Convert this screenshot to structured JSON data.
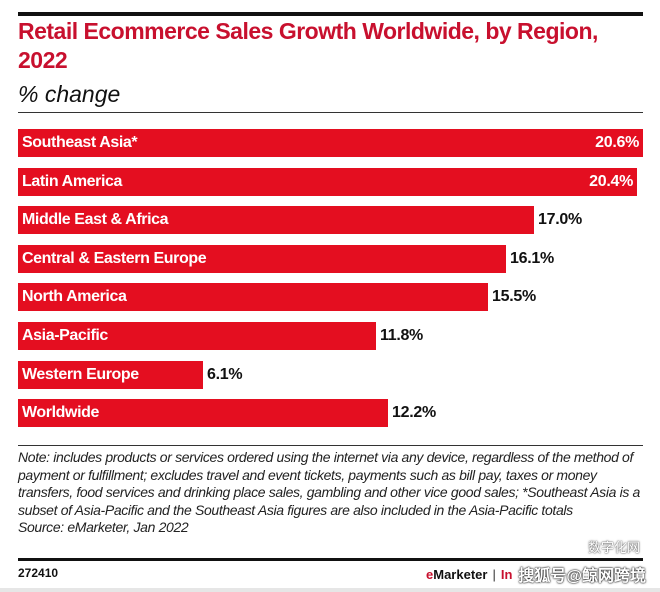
{
  "chart_data": {
    "type": "bar",
    "orientation": "horizontal",
    "title": "Retail Ecommerce Sales Growth Worldwide, by Region, 2022",
    "subtitle": "% change",
    "xlabel": "",
    "ylabel": "",
    "xlim": [
      0,
      20.6
    ],
    "grid": false,
    "categories": [
      "Southeast Asia*",
      "Latin America",
      "Middle East & Africa",
      "Central & Eastern Europe",
      "North America",
      "Asia-Pacific",
      "Western Europe",
      "Worldwide"
    ],
    "values": [
      20.6,
      20.4,
      17.0,
      16.1,
      15.5,
      11.8,
      6.1,
      12.2
    ],
    "value_labels": [
      "20.6%",
      "20.4%",
      "17.0%",
      "16.1%",
      "15.5%",
      "11.8%",
      "6.1%",
      "12.2%"
    ],
    "bar_color": "#e40e20"
  },
  "header": {
    "title": "Retail Ecommerce Sales Growth Worldwide, by Region, 2022",
    "subtitle": "% change"
  },
  "footer": {
    "note": "Note: includes products or services ordered using the internet via any device, regardless of the method of payment or fulfillment; excludes travel and event tickets, payments such as bill pay, taxes or money transfers, food services and drinking place sales, gambling and other vice good sales; *Southeast Asia is a subset of Asia-Pacific and the Southeast Asia figures are also included in the Asia-Pacific totals",
    "source": "Source: eMarketer, Jan 2022",
    "chart_id": "272410",
    "brand_e": "e",
    "brand_rest": "Marketer",
    "brand_sep": "|",
    "brand_insider": "In",
    "watermark": "搜狐号@鲸网跨境",
    "watermark_top": "数字化网"
  },
  "colors": {
    "title": "#c8102e",
    "bar": "#e40e20",
    "text": "#111111"
  }
}
